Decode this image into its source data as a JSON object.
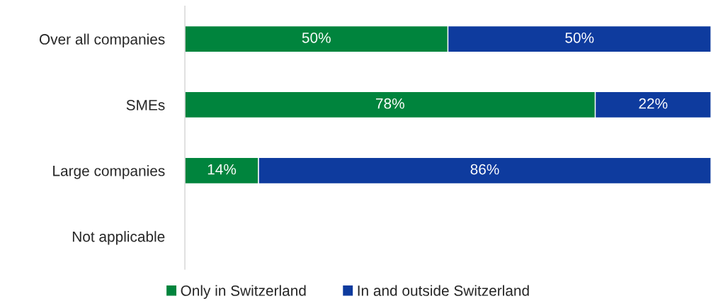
{
  "chart_data": {
    "type": "bar",
    "orientation": "horizontal",
    "stacked": true,
    "legend": "bottom",
    "grid": false,
    "categories": [
      "Over all companies",
      "SMEs",
      "Large companies",
      "Not applicable"
    ],
    "series": [
      {
        "name": "Only in Switzerland",
        "color": "#00843d",
        "values": [
          50,
          78,
          14,
          null
        ],
        "value_labels": [
          "50%",
          "78%",
          "14%",
          null
        ]
      },
      {
        "name": "In and outside Switzerland",
        "color": "#0e3b9e",
        "values": [
          50,
          22,
          86,
          null
        ],
        "value_labels": [
          "50%",
          "22%",
          "86%",
          null
        ]
      }
    ]
  }
}
